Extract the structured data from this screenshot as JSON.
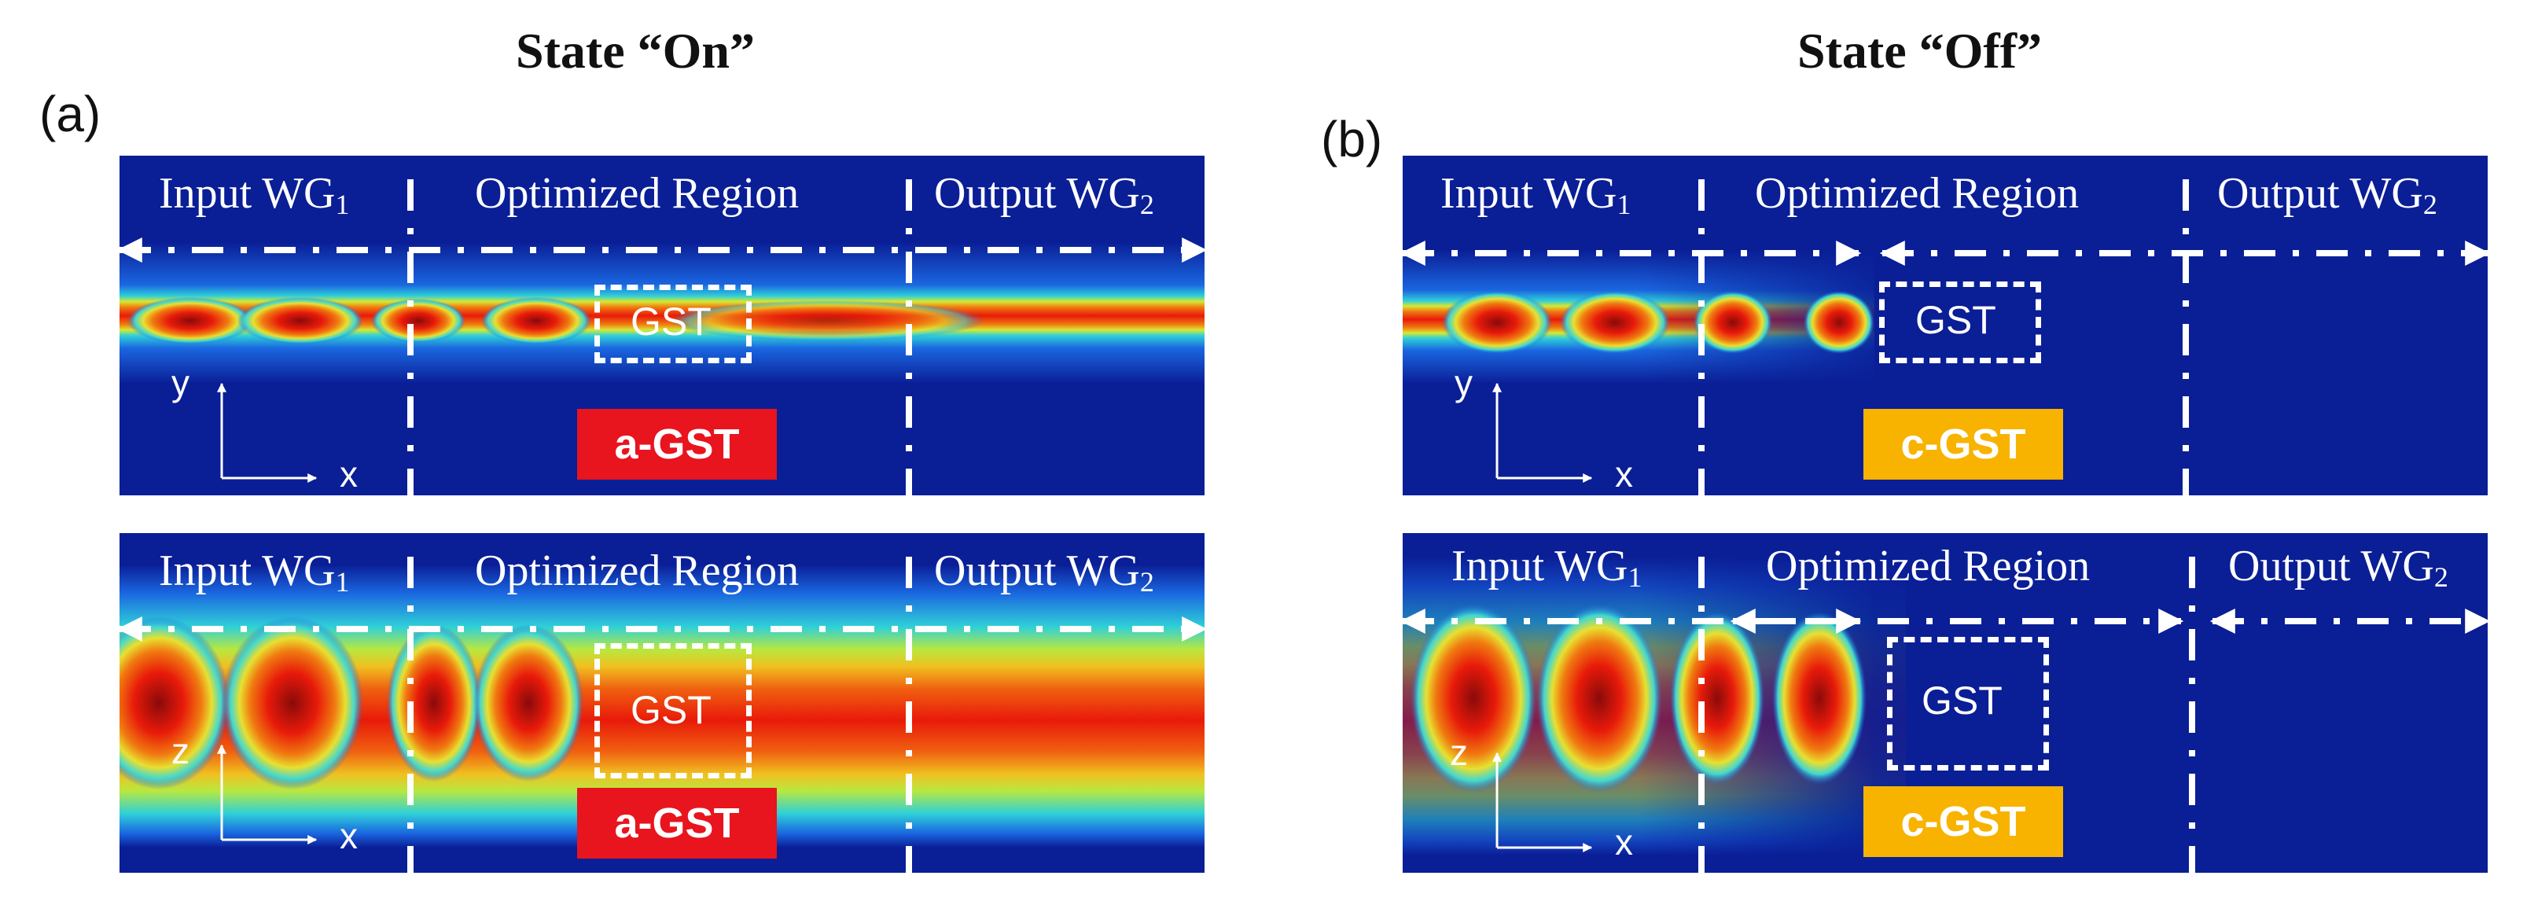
{
  "titles": {
    "on": "State “On”",
    "off": "State “Off”"
  },
  "panel_labels": {
    "a": "(a)",
    "b": "(b)"
  },
  "regions": {
    "input": "Input WG",
    "input_sub": "1",
    "optimized": "Optimized Region",
    "output": "Output WG",
    "output_sub": "2"
  },
  "gst_label": "GST",
  "badges": {
    "amorphous": "a-GST",
    "crystalline": "c-GST"
  },
  "axes": {
    "y": "y",
    "z": "z",
    "x": "x"
  },
  "colors": {
    "field_bg": "#0a1e96",
    "amorphous_badge": "#e8141e",
    "crystalline_badge": "#f7b300",
    "arrow": "#ffffff"
  }
}
